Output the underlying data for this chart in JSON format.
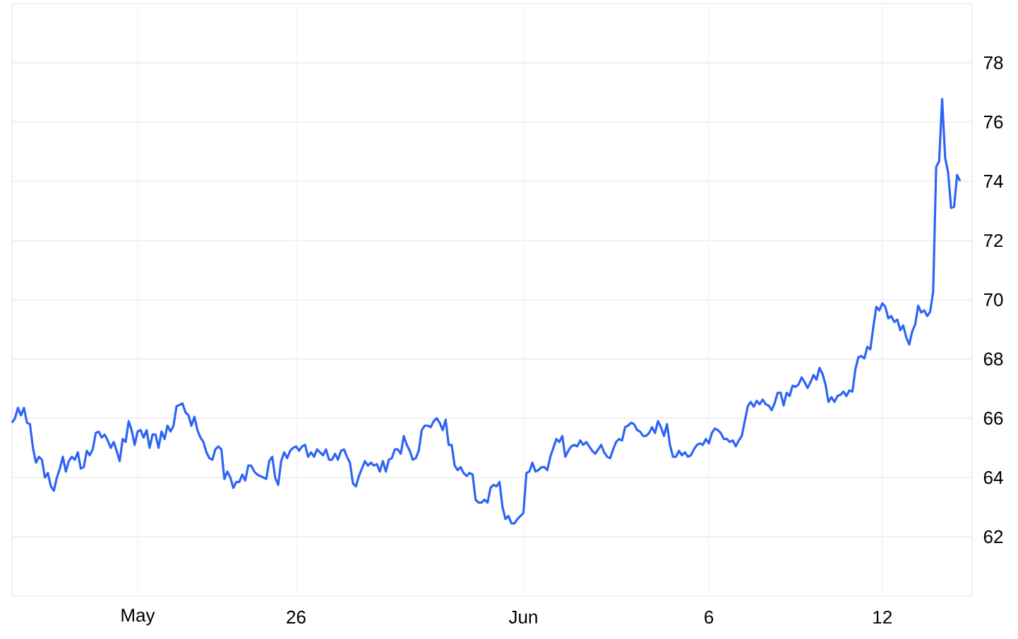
{
  "chart_data": {
    "type": "line",
    "categories": [
      null,
      null,
      null,
      null,
      null,
      null,
      null,
      null,
      null,
      null,
      null,
      null,
      null,
      null,
      null,
      null,
      null,
      null,
      null,
      null,
      null,
      null,
      null,
      null,
      null,
      null,
      null,
      null,
      null,
      null,
      null,
      null,
      null,
      null,
      null,
      null,
      null,
      null,
      null,
      null,
      null,
      null,
      "May",
      null,
      null,
      null,
      null,
      null,
      null,
      null,
      null,
      null,
      null,
      null,
      null,
      null,
      null,
      null,
      null,
      null,
      null,
      null,
      null,
      null,
      null,
      null,
      null,
      null,
      null,
      null,
      null,
      null,
      null,
      null,
      null,
      null,
      null,
      null,
      null,
      null,
      null,
      null,
      null,
      null,
      null,
      null,
      null,
      null,
      null,
      null,
      null,
      null,
      null,
      null,
      null,
      "26",
      null,
      null,
      null,
      null,
      null,
      null,
      null,
      null,
      null,
      null,
      null,
      null,
      null,
      null,
      null,
      null,
      null,
      null,
      null,
      null,
      null,
      null,
      null,
      null,
      null,
      null,
      null,
      null,
      null,
      null,
      null,
      null,
      null,
      null,
      null,
      null,
      null,
      null,
      null,
      null,
      null,
      null,
      null,
      null,
      null,
      null,
      null,
      null,
      null,
      null,
      null,
      null,
      null,
      null,
      null,
      null,
      null,
      null,
      null,
      null,
      null,
      null,
      null,
      null,
      null,
      null,
      null,
      null,
      null,
      null,
      null,
      null,
      null,
      null,
      null,
      "Jun",
      null,
      null,
      null,
      null,
      null,
      null,
      null,
      null,
      null,
      null,
      null,
      null,
      null,
      null,
      null,
      null,
      null,
      null,
      null,
      null,
      null,
      null,
      null,
      null,
      null,
      null,
      null,
      null,
      null,
      null,
      null,
      null,
      null,
      null,
      null,
      null,
      null,
      null,
      null,
      null,
      null,
      null,
      null,
      null,
      null,
      null,
      null,
      null,
      null,
      null,
      null,
      null,
      null,
      null,
      null,
      null,
      null,
      null,
      null,
      null,
      null,
      "6",
      null,
      null,
      null,
      null,
      null,
      null,
      null,
      null,
      null,
      null,
      null,
      null,
      null,
      null,
      null,
      null,
      null,
      null,
      null,
      null,
      null,
      null,
      null,
      null,
      null,
      null,
      null,
      null,
      null,
      null,
      null,
      null,
      null,
      null,
      null,
      null,
      null,
      null,
      null,
      null,
      null,
      null,
      null,
      null,
      null,
      null,
      null,
      null,
      null,
      null,
      null,
      null,
      null,
      null,
      null,
      null,
      null,
      "12",
      null,
      null,
      null,
      null,
      null,
      null,
      null,
      null,
      null,
      null,
      null,
      null,
      null,
      null,
      null,
      null,
      null,
      null,
      null,
      null,
      null,
      null,
      null,
      null,
      null,
      null
    ],
    "series": [
      {
        "color": "#2d64f5",
        "values": [
          65.85,
          66.0,
          66.35,
          66.1,
          66.35,
          65.85,
          65.8,
          65.0,
          64.5,
          64.7,
          64.6,
          64.0,
          64.15,
          63.7,
          63.55,
          64.0,
          64.3,
          64.7,
          64.2,
          64.55,
          64.7,
          64.6,
          64.85,
          64.3,
          64.35,
          64.9,
          64.75,
          64.95,
          65.5,
          65.55,
          65.35,
          65.45,
          65.25,
          65.0,
          65.2,
          64.9,
          64.55,
          65.3,
          65.2,
          65.9,
          65.6,
          65.1,
          65.55,
          65.6,
          65.35,
          65.6,
          65.0,
          65.45,
          65.45,
          65.0,
          65.55,
          65.3,
          65.75,
          65.55,
          65.75,
          66.4,
          66.45,
          66.5,
          66.2,
          66.1,
          65.75,
          66.05,
          65.6,
          65.35,
          65.2,
          64.85,
          64.65,
          64.6,
          64.95,
          65.05,
          64.95,
          63.95,
          64.2,
          64.0,
          63.65,
          63.85,
          63.85,
          64.1,
          63.9,
          64.4,
          64.4,
          64.2,
          64.1,
          64.05,
          64.0,
          63.95,
          64.55,
          64.7,
          64.0,
          63.75,
          64.55,
          64.85,
          64.65,
          64.9,
          65.0,
          65.05,
          64.9,
          65.05,
          65.1,
          64.7,
          64.85,
          64.7,
          64.95,
          64.85,
          64.75,
          64.95,
          64.6,
          64.6,
          64.8,
          64.6,
          64.9,
          64.95,
          64.7,
          64.5,
          63.8,
          63.7,
          64.05,
          64.3,
          64.55,
          64.4,
          64.5,
          64.4,
          64.45,
          64.2,
          64.55,
          64.2,
          64.6,
          64.65,
          64.95,
          64.95,
          64.8,
          65.4,
          65.1,
          64.9,
          64.6,
          64.65,
          64.9,
          65.6,
          65.75,
          65.75,
          65.7,
          65.9,
          66.0,
          65.85,
          65.6,
          65.95,
          65.1,
          65.1,
          64.4,
          64.25,
          64.35,
          64.15,
          64.05,
          64.15,
          64.1,
          63.25,
          63.15,
          63.15,
          63.25,
          63.15,
          63.65,
          63.75,
          63.7,
          63.85,
          63.0,
          62.6,
          62.7,
          62.45,
          62.45,
          62.6,
          62.7,
          62.8,
          64.15,
          64.2,
          64.5,
          64.2,
          64.25,
          64.35,
          64.35,
          64.25,
          64.7,
          65.0,
          65.3,
          65.2,
          65.4,
          64.7,
          64.9,
          65.05,
          65.1,
          65.05,
          65.25,
          65.1,
          65.2,
          65.05,
          64.9,
          64.8,
          64.95,
          65.1,
          64.85,
          64.7,
          64.65,
          64.95,
          65.2,
          65.3,
          65.25,
          65.7,
          65.75,
          65.85,
          65.8,
          65.6,
          65.55,
          65.4,
          65.4,
          65.5,
          65.7,
          65.5,
          65.9,
          65.7,
          65.4,
          65.8,
          65.1,
          64.7,
          64.7,
          64.9,
          64.75,
          64.85,
          64.7,
          64.75,
          64.95,
          65.1,
          65.15,
          65.1,
          65.3,
          65.15,
          65.5,
          65.65,
          65.6,
          65.5,
          65.3,
          65.3,
          65.2,
          65.25,
          65.05,
          65.25,
          65.4,
          65.9,
          66.4,
          66.55,
          66.39,
          66.59,
          66.47,
          66.63,
          66.47,
          66.43,
          66.27,
          66.51,
          66.86,
          66.86,
          66.43,
          66.86,
          66.75,
          67.1,
          67.06,
          67.14,
          67.38,
          67.22,
          67.02,
          67.22,
          67.46,
          67.3,
          67.7,
          67.5,
          67.14,
          66.55,
          66.71,
          66.55,
          66.75,
          66.79,
          66.9,
          66.75,
          66.94,
          66.9,
          67.66,
          68.06,
          68.1,
          68.02,
          68.41,
          68.33,
          69.09,
          69.76,
          69.64,
          69.88,
          69.76,
          69.37,
          69.45,
          69.25,
          69.33,
          68.97,
          69.13,
          68.73,
          68.49,
          68.93,
          69.17,
          69.8,
          69.57,
          69.64,
          69.45,
          69.6,
          70.27,
          74.48,
          74.68,
          76.78,
          74.8,
          74.29,
          73.1,
          73.14,
          74.21,
          74.01
        ]
      }
    ],
    "ylim": [
      60,
      80
    ],
    "yticks": [
      62,
      64,
      66,
      68,
      70,
      72,
      74,
      76,
      78
    ],
    "grid": true
  }
}
